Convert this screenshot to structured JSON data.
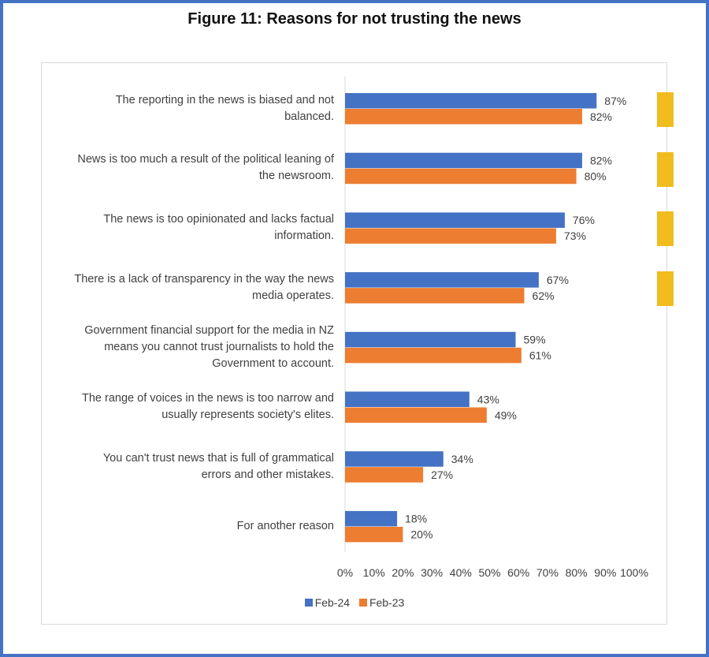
{
  "figure_title": "Figure 11: Reasons for not trusting the news",
  "colors": {
    "feb24": "#4472c4",
    "feb23": "#ed7d31",
    "marker": "#f0bc1e",
    "frame": "#4472c4"
  },
  "chart_data": {
    "type": "bar",
    "orientation": "horizontal",
    "title": "Reasons for not trusting the news",
    "xlim": [
      0,
      100
    ],
    "x_ticks": [
      "0%",
      "10%",
      "20%",
      "30%",
      "40%",
      "50%",
      "60%",
      "70%",
      "80%",
      "90%",
      "100%"
    ],
    "categories": [
      [
        "The reporting in the news is biased and not",
        "balanced."
      ],
      [
        "News is too much a result of the political leaning of",
        "the newsroom."
      ],
      [
        "The news is too opinionated and lacks factual",
        "information."
      ],
      [
        "There is a lack of transparency in the way the news",
        "media operates."
      ],
      [
        "Government financial support for the media in NZ",
        "means you cannot trust journalists to hold the",
        "Government to account."
      ],
      [
        "The range of voices in the news is too narrow and",
        "usually represents society's elites."
      ],
      [
        "You can't trust news that is full of grammatical",
        "errors and other mistakes."
      ],
      [
        "For another reason"
      ]
    ],
    "series": [
      {
        "name": "Feb-24",
        "values": [
          87,
          82,
          76,
          67,
          59,
          43,
          34,
          18
        ],
        "labels": [
          "87%",
          "82%",
          "76%",
          "67%",
          "59%",
          "43%",
          "34%",
          "18%"
        ]
      },
      {
        "name": "Feb-23",
        "values": [
          82,
          80,
          73,
          62,
          61,
          49,
          27,
          20
        ],
        "labels": [
          "82%",
          "80%",
          "73%",
          "62%",
          "61%",
          "49%",
          "27%",
          "20%"
        ]
      }
    ],
    "highlighted_categories": [
      0,
      1,
      2,
      3
    ],
    "legend_position": "bottom",
    "grid": false
  }
}
